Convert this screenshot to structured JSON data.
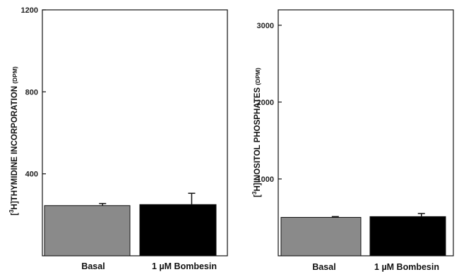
{
  "chart_data": [
    {
      "type": "bar",
      "categories": [
        "Basal",
        "1 µM Bombesin"
      ],
      "values": [
        245,
        250
      ],
      "errors": [
        10,
        55
      ],
      "colors": [
        "#8a8a8a",
        "#000000"
      ],
      "ylabel_parts": {
        "sup": "3",
        "main": "H]THYMIDINE INCORPORATION",
        "unit": "(DPM)"
      },
      "ylim": [
        0,
        1200
      ],
      "yticks": [
        400,
        800,
        1200
      ],
      "ytick_labels": [
        "400",
        "800",
        "1200"
      ],
      "grid": false
    },
    {
      "type": "bar",
      "categories": [
        "Basal",
        "1 µM Bombesin"
      ],
      "values": [
        500,
        510
      ],
      "errors": [
        10,
        40
      ],
      "colors": [
        "#8a8a8a",
        "#000000"
      ],
      "ylabel_parts": {
        "sup": "3",
        "main": "H]INOSITOL PHOSPHATES",
        "unit": "(DPM)"
      },
      "ylim": [
        0,
        3200
      ],
      "yticks": [
        1000,
        2000,
        3000
      ],
      "ytick_labels": [
        "1000",
        "2000",
        "3000"
      ],
      "grid": false
    }
  ]
}
